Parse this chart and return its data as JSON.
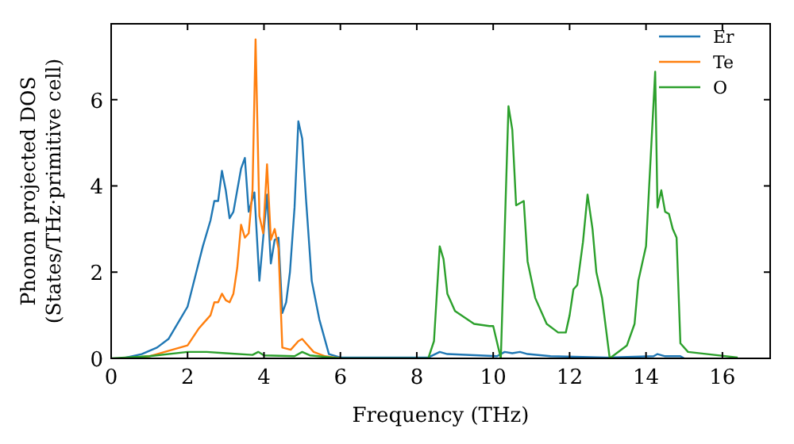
{
  "chart_data": {
    "type": "line",
    "xlabel": "Frequency (THz)",
    "ylabel": "Phonon projected DOS\n(States/THz·primitive cell)",
    "xlim": [
      0,
      17.25
    ],
    "ylim": [
      0,
      7.76
    ],
    "xticks": [
      0,
      2,
      4,
      6,
      8,
      10,
      12,
      14,
      16
    ],
    "yticks": [
      0,
      2,
      4,
      6
    ],
    "grid": false,
    "legend": "top right",
    "series": [
      {
        "name": "Er",
        "color": "#1f77b4",
        "x": [
          0.3,
          0.8,
          1.2,
          1.5,
          1.8,
          2.0,
          2.2,
          2.4,
          2.6,
          2.7,
          2.8,
          2.9,
          3.0,
          3.1,
          3.2,
          3.3,
          3.4,
          3.5,
          3.6,
          3.75,
          3.88,
          3.98,
          4.08,
          4.18,
          4.28,
          4.38,
          4.48,
          4.58,
          4.68,
          4.8,
          4.9,
          5.0,
          5.1,
          5.25,
          5.45,
          5.7,
          6.0,
          8.3,
          8.6,
          8.8,
          10.1,
          10.3,
          10.5,
          10.7,
          10.9,
          11.5,
          13.0,
          14.2,
          14.3,
          14.5,
          14.9,
          15.0
        ],
        "values": [
          0,
          0.1,
          0.25,
          0.45,
          0.9,
          1.2,
          1.9,
          2.6,
          3.2,
          3.65,
          3.65,
          4.35,
          3.9,
          3.25,
          3.4,
          3.9,
          4.4,
          4.65,
          3.4,
          3.85,
          1.8,
          2.8,
          3.8,
          2.2,
          2.75,
          2.8,
          1.05,
          1.3,
          2.0,
          3.5,
          5.5,
          5.1,
          3.7,
          1.8,
          0.9,
          0.1,
          0.02,
          0.02,
          0.15,
          0.1,
          0.05,
          0.15,
          0.12,
          0.15,
          0.1,
          0.05,
          0.02,
          0.05,
          0.1,
          0.05,
          0.05,
          0
        ]
      },
      {
        "name": "Te",
        "color": "#ff7f0e",
        "x": [
          0.4,
          1.0,
          2.0,
          2.3,
          2.6,
          2.7,
          2.8,
          2.9,
          3.0,
          3.1,
          3.2,
          3.3,
          3.4,
          3.5,
          3.6,
          3.7,
          3.78,
          3.88,
          3.98,
          4.08,
          4.18,
          4.28,
          4.38,
          4.48,
          4.7,
          4.9,
          5.0,
          5.1,
          5.3,
          5.6,
          6.0
        ],
        "values": [
          0,
          0.05,
          0.3,
          0.7,
          1.0,
          1.3,
          1.3,
          1.5,
          1.35,
          1.3,
          1.5,
          2.1,
          3.1,
          2.8,
          2.9,
          3.9,
          7.4,
          3.3,
          2.9,
          4.5,
          2.75,
          3.0,
          2.55,
          0.25,
          0.2,
          0.4,
          0.45,
          0.35,
          0.15,
          0.05,
          0
        ]
      },
      {
        "name": "O",
        "color": "#2ca02c",
        "x": [
          0,
          1,
          2,
          2.5,
          3.0,
          3.7,
          3.85,
          4.0,
          4.8,
          5.0,
          5.2,
          6.0,
          8.3,
          8.45,
          8.6,
          8.7,
          8.8,
          9.0,
          9.5,
          9.9,
          10.0,
          10.2,
          10.4,
          10.5,
          10.6,
          10.7,
          10.8,
          10.9,
          11.1,
          11.4,
          11.7,
          11.9,
          12.0,
          12.1,
          12.2,
          12.35,
          12.47,
          12.6,
          12.7,
          12.85,
          13.05,
          13.5,
          13.7,
          13.8,
          13.9,
          14.0,
          14.24,
          14.3,
          14.4,
          14.5,
          14.6,
          14.7,
          14.8,
          14.9,
          15.1,
          16.4
        ],
        "values": [
          0,
          0.05,
          0.15,
          0.15,
          0.12,
          0.08,
          0.15,
          0.07,
          0.05,
          0.15,
          0.07,
          0,
          0,
          0.4,
          2.6,
          2.3,
          1.5,
          1.1,
          0.8,
          0.75,
          0.75,
          0,
          5.85,
          5.3,
          3.55,
          3.6,
          3.65,
          2.25,
          1.4,
          0.8,
          0.6,
          0.6,
          1.0,
          1.6,
          1.7,
          2.7,
          3.8,
          3.0,
          2.0,
          1.4,
          0,
          0.3,
          0.8,
          1.8,
          2.2,
          2.6,
          6.65,
          3.5,
          3.9,
          3.4,
          3.35,
          3.0,
          2.8,
          0.35,
          0.15,
          0.02
        ]
      }
    ]
  }
}
